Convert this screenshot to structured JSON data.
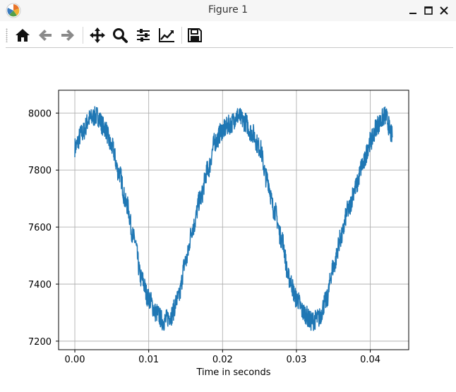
{
  "window": {
    "title": "Figure 1"
  },
  "toolbar": {
    "buttons": [
      "home-icon",
      "back-icon",
      "forward-icon",
      "pan-icon",
      "zoom-icon",
      "configure-subplots-icon",
      "edit-curves-icon",
      "save-icon"
    ]
  },
  "colors": {
    "line": "#1f77b4",
    "grid": "#b0b0b0",
    "titlebar": "#f6f6f6"
  },
  "chart_data": {
    "type": "line",
    "title": "",
    "xlabel": "Time in seconds",
    "ylabel": "",
    "xlim": [
      -0.0022,
      0.0452
    ],
    "ylim": [
      7170,
      8080
    ],
    "xticks": [
      0.0,
      0.01,
      0.02,
      0.03,
      0.04
    ],
    "xtick_labels": [
      "0.00",
      "0.01",
      "0.02",
      "0.03",
      "0.04"
    ],
    "yticks": [
      7200,
      7400,
      7600,
      7800,
      8000
    ],
    "ytick_labels": [
      "7200",
      "7400",
      "7600",
      "7800",
      "8000"
    ],
    "grid": true,
    "series": [
      {
        "color": "#1f77b4",
        "x": [
          0.0,
          0.001,
          0.002,
          0.003,
          0.004,
          0.005,
          0.006,
          0.007,
          0.008,
          0.009,
          0.01,
          0.011,
          0.012,
          0.013,
          0.014,
          0.015,
          0.016,
          0.017,
          0.018,
          0.019,
          0.02,
          0.021,
          0.022,
          0.023,
          0.024,
          0.025,
          0.026,
          0.027,
          0.028,
          0.029,
          0.03,
          0.031,
          0.032,
          0.033,
          0.034,
          0.035,
          0.036,
          0.037,
          0.038,
          0.039,
          0.04,
          0.041,
          0.042,
          0.043
        ],
        "y": [
          7880,
          7930,
          7980,
          7990,
          7950,
          7880,
          7790,
          7680,
          7560,
          7420,
          7350,
          7300,
          7270,
          7290,
          7350,
          7480,
          7600,
          7700,
          7800,
          7900,
          7940,
          7960,
          7990,
          7970,
          7930,
          7880,
          7770,
          7660,
          7560,
          7420,
          7350,
          7300,
          7270,
          7280,
          7340,
          7460,
          7560,
          7660,
          7740,
          7820,
          7900,
          7960,
          7990,
          7920
        ]
      }
    ]
  }
}
